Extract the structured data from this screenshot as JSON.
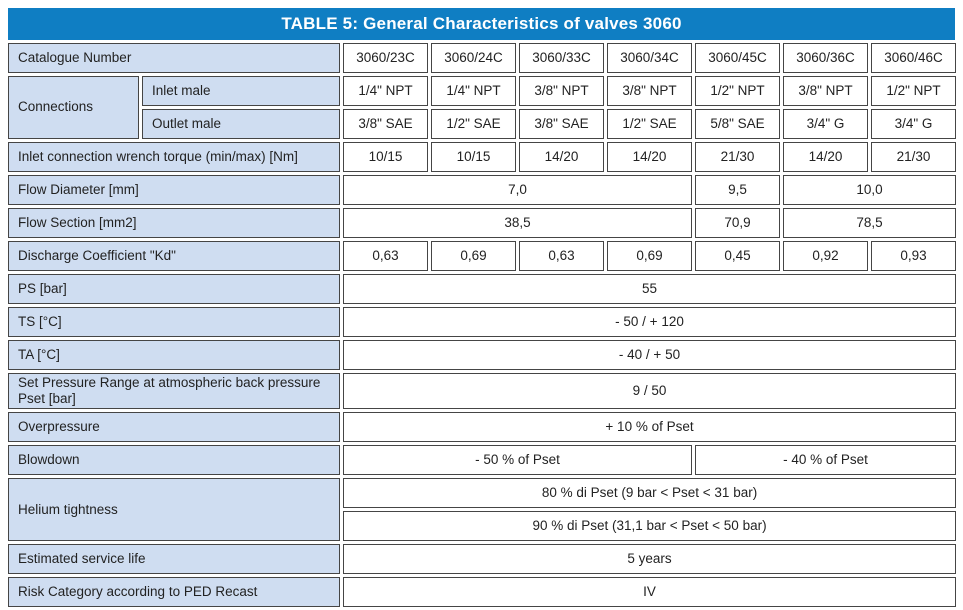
{
  "title": "TABLE 5: General Characteristics of valves 3060",
  "colors": {
    "header_bg": "#0f7ec3",
    "label_bg": "#cfddf1",
    "border": "#454545",
    "header_text": "#ffffff",
    "text": "#222222"
  },
  "table": {
    "catalogue": {
      "label": "Catalogue Number",
      "values": [
        "3060/23C",
        "3060/24C",
        "3060/33C",
        "3060/34C",
        "3060/45C",
        "3060/36C",
        "3060/46C"
      ]
    },
    "connections": {
      "label": "Connections",
      "inlet": {
        "label": "Inlet male",
        "values": [
          "1/4\" NPT",
          "1/4\" NPT",
          "3/8\" NPT",
          "3/8\" NPT",
          "1/2\" NPT",
          "3/8\" NPT",
          "1/2\" NPT"
        ]
      },
      "outlet": {
        "label": "Outlet male",
        "values": [
          "3/8\" SAE",
          "1/2\" SAE",
          "3/8\" SAE",
          "1/2\" SAE",
          "5/8\" SAE",
          "3/4\" G",
          "3/4\" G"
        ]
      }
    },
    "torque": {
      "label": "Inlet connection wrench torque (min/max) [Nm]",
      "values": [
        "10/15",
        "10/15",
        "14/20",
        "14/20",
        "21/30",
        "14/20",
        "21/30"
      ]
    },
    "flow_diameter": {
      "label": "Flow Diameter [mm]",
      "values": [
        "7,0",
        "9,5",
        "10,0"
      ]
    },
    "flow_section": {
      "label": "Flow Section [mm2]",
      "values": [
        "38,5",
        "70,9",
        "78,5"
      ]
    },
    "discharge_coefficient": {
      "label": "Discharge Coefficient \"Kd\"",
      "values": [
        "0,63",
        "0,69",
        "0,63",
        "0,69",
        "0,45",
        "0,92",
        "0,93"
      ]
    },
    "ps": {
      "label": "PS [bar]",
      "value": "55"
    },
    "ts": {
      "label": "TS [°C]",
      "value": "- 50  /  + 120"
    },
    "ta": {
      "label": "TA [°C]",
      "value": "- 40  /  + 50"
    },
    "set_pressure": {
      "label": "Set Pressure Range at atmospheric back pressure Pset [bar]",
      "value": "9  /  50"
    },
    "overpressure": {
      "label": "Overpressure",
      "value": "+ 10 % of Pset"
    },
    "blowdown": {
      "label": "Blowdown",
      "left": "- 50 % of Pset",
      "right": "- 40 % of Pset"
    },
    "helium": {
      "label": "Helium tightness",
      "line1": "80 % di Pset   (9 bar < Pset < 31 bar)",
      "line2": "90 % di Pset   (31,1 bar < Pset < 50 bar)"
    },
    "service_life": {
      "label": "Estimated service life",
      "value": "5 years"
    },
    "risk": {
      "label": "Risk Category according to PED Recast",
      "value": "IV"
    }
  }
}
